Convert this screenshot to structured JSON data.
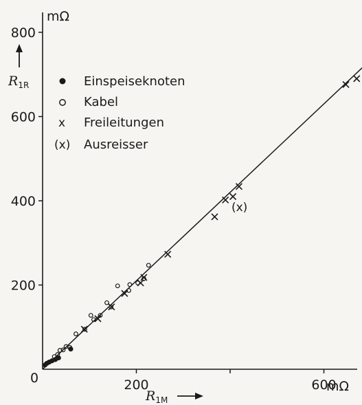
{
  "chart_data": {
    "type": "scatter",
    "x_axis": {
      "symbol": "R",
      "subscript": "1M",
      "unit": "mΩ",
      "ticks": [
        {
          "value": 200,
          "label": "200"
        },
        {
          "value": 400,
          "label": ""
        },
        {
          "value": 600,
          "label": "600"
        }
      ],
      "range": [
        0,
        700
      ]
    },
    "y_axis": {
      "symbol": "R",
      "subscript": "1R",
      "unit": "mΩ",
      "ticks": [
        {
          "value": 200,
          "label": "200"
        },
        {
          "value": 400,
          "label": "400"
        },
        {
          "value": 600,
          "label": "600"
        },
        {
          "value": 800,
          "label": "800"
        }
      ],
      "range": [
        0,
        800
      ]
    },
    "origin_label": "0",
    "legend": [
      {
        "key": "einspeise",
        "symbol": "●",
        "label": "Einspeiseknoten"
      },
      {
        "key": "kabel",
        "symbol": "o",
        "label": "Kabel"
      },
      {
        "key": "frei",
        "symbol": "x",
        "label": "Freileitungen"
      },
      {
        "key": "ausreisser",
        "symbol": "(x)",
        "label": "Ausreisser"
      }
    ],
    "reference_line": {
      "from": [
        0,
        0
      ],
      "to": [
        700,
        735
      ]
    },
    "series": [
      {
        "name": "Einspeiseknoten",
        "marker": "dot",
        "points": [
          [
            5,
            10
          ],
          [
            9,
            14
          ],
          [
            14,
            17
          ],
          [
            20,
            20
          ],
          [
            27,
            23
          ],
          [
            34,
            27
          ],
          [
            60,
            48
          ]
        ]
      },
      {
        "name": "Kabel",
        "marker": "circle",
        "points": [
          [
            25,
            30
          ],
          [
            32,
            35
          ],
          [
            37,
            45
          ],
          [
            44,
            46
          ],
          [
            50,
            54
          ],
          [
            58,
            52
          ],
          [
            71,
            84
          ],
          [
            90,
            95
          ],
          [
            103,
            128
          ],
          [
            109,
            118
          ],
          [
            123,
            128
          ],
          [
            137,
            158
          ],
          [
            146,
            148
          ],
          [
            160,
            198
          ],
          [
            186,
            201
          ],
          [
            203,
            205
          ],
          [
            226,
            247
          ],
          [
            216,
            215
          ],
          [
            184,
            187
          ]
        ]
      },
      {
        "name": "Freileitungen",
        "marker": "x",
        "points": [
          [
            89,
            95
          ],
          [
            118,
            120
          ],
          [
            147,
            148
          ],
          [
            175,
            180
          ],
          [
            209,
            205
          ],
          [
            216,
            218
          ],
          [
            267,
            273
          ],
          [
            367,
            362
          ],
          [
            390,
            402
          ],
          [
            406,
            410
          ],
          [
            419,
            434
          ],
          [
            647,
            676
          ],
          [
            670,
            690
          ]
        ]
      },
      {
        "name": "Ausreisser",
        "marker": "x",
        "points": [],
        "annotation": {
          "x": 420,
          "y": 385,
          "label": "(x)"
        }
      }
    ]
  }
}
